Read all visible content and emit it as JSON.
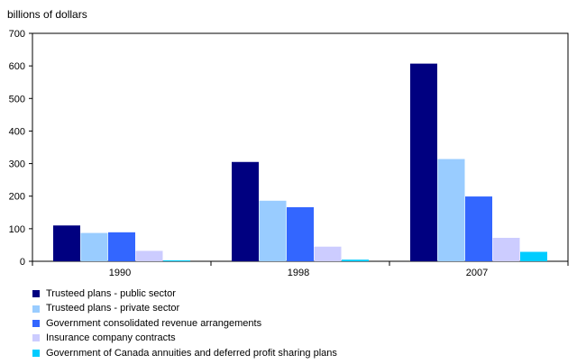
{
  "chart_data": {
    "type": "bar",
    "title": "",
    "xlabel": "",
    "ylabel": "billions of dollars",
    "ylim": [
      0,
      700
    ],
    "yticks": [
      "0",
      "100",
      "200",
      "300",
      "400",
      "500",
      "600",
      "700"
    ],
    "grid": false,
    "legend_position": "bottom-left",
    "categories": [
      "1990",
      "1998",
      "2007"
    ],
    "series": [
      {
        "name": "Trusteed plans - public sector",
        "color": "#000080",
        "values": [
          110,
          305,
          607
        ]
      },
      {
        "name": "Trusteed plans - private sector",
        "color": "#99ccff",
        "values": [
          87,
          186,
          314
        ]
      },
      {
        "name": "Government consolidated revenue arrangements",
        "color": "#3366ff",
        "values": [
          89,
          166,
          199
        ]
      },
      {
        "name": "Insurance company contracts",
        "color": "#ccccff",
        "values": [
          32,
          45,
          72
        ]
      },
      {
        "name": "Government of Canada annuities and deferred profit sharing plans",
        "color": "#00ccff",
        "values": [
          3,
          5,
          29
        ]
      }
    ]
  }
}
